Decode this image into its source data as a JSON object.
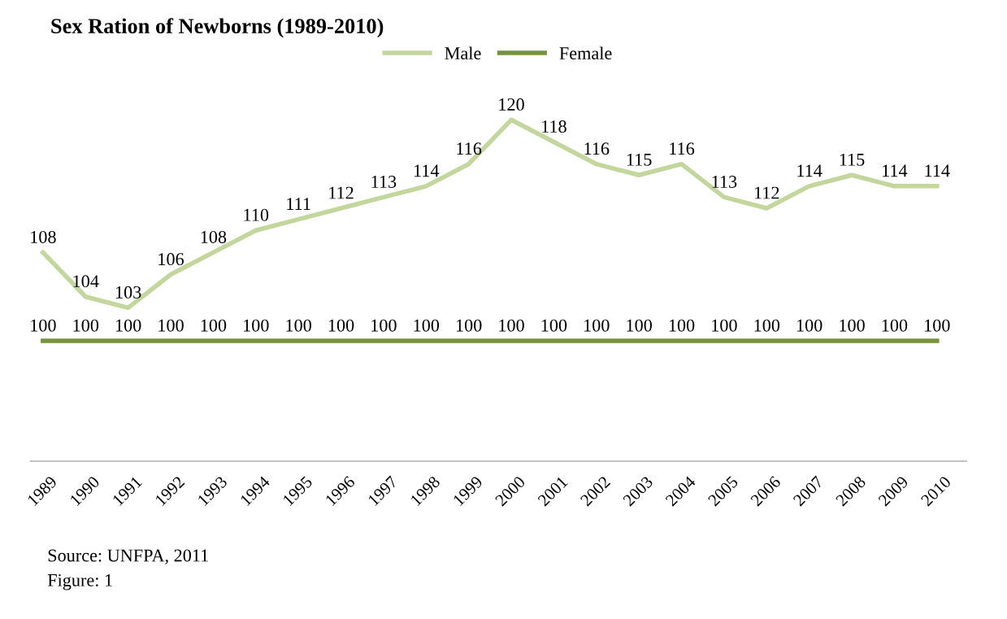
{
  "chart_data": {
    "type": "line",
    "title": "Sex Ration of Newborns (1989-2010)",
    "categories": [
      "1989",
      "1990",
      "1991",
      "1992",
      "1993",
      "1994",
      "1995",
      "1996",
      "1997",
      "1998",
      "1999",
      "2000",
      "2001",
      "2002",
      "2003",
      "2004",
      "2005",
      "2006",
      "2007",
      "2008",
      "2009",
      "2010"
    ],
    "series": [
      {
        "name": "Male",
        "color": "#c3d69b",
        "values": [
          108,
          104,
          103,
          106,
          108,
          110,
          111,
          112,
          113,
          114,
          116,
          120,
          118,
          116,
          115,
          116,
          113,
          112,
          114,
          115,
          114,
          114
        ]
      },
      {
        "name": "Female",
        "color": "#76923c",
        "values": [
          100,
          100,
          100,
          100,
          100,
          100,
          100,
          100,
          100,
          100,
          100,
          100,
          100,
          100,
          100,
          100,
          100,
          100,
          100,
          100,
          100,
          100
        ]
      }
    ],
    "tick_labels": "x",
    "data_labels": true,
    "legend": "top",
    "grid": false,
    "marker": "none",
    "line_style": "solid",
    "annotations": [
      "Source: UNFPA, 2011",
      "Figure: 1"
    ]
  }
}
